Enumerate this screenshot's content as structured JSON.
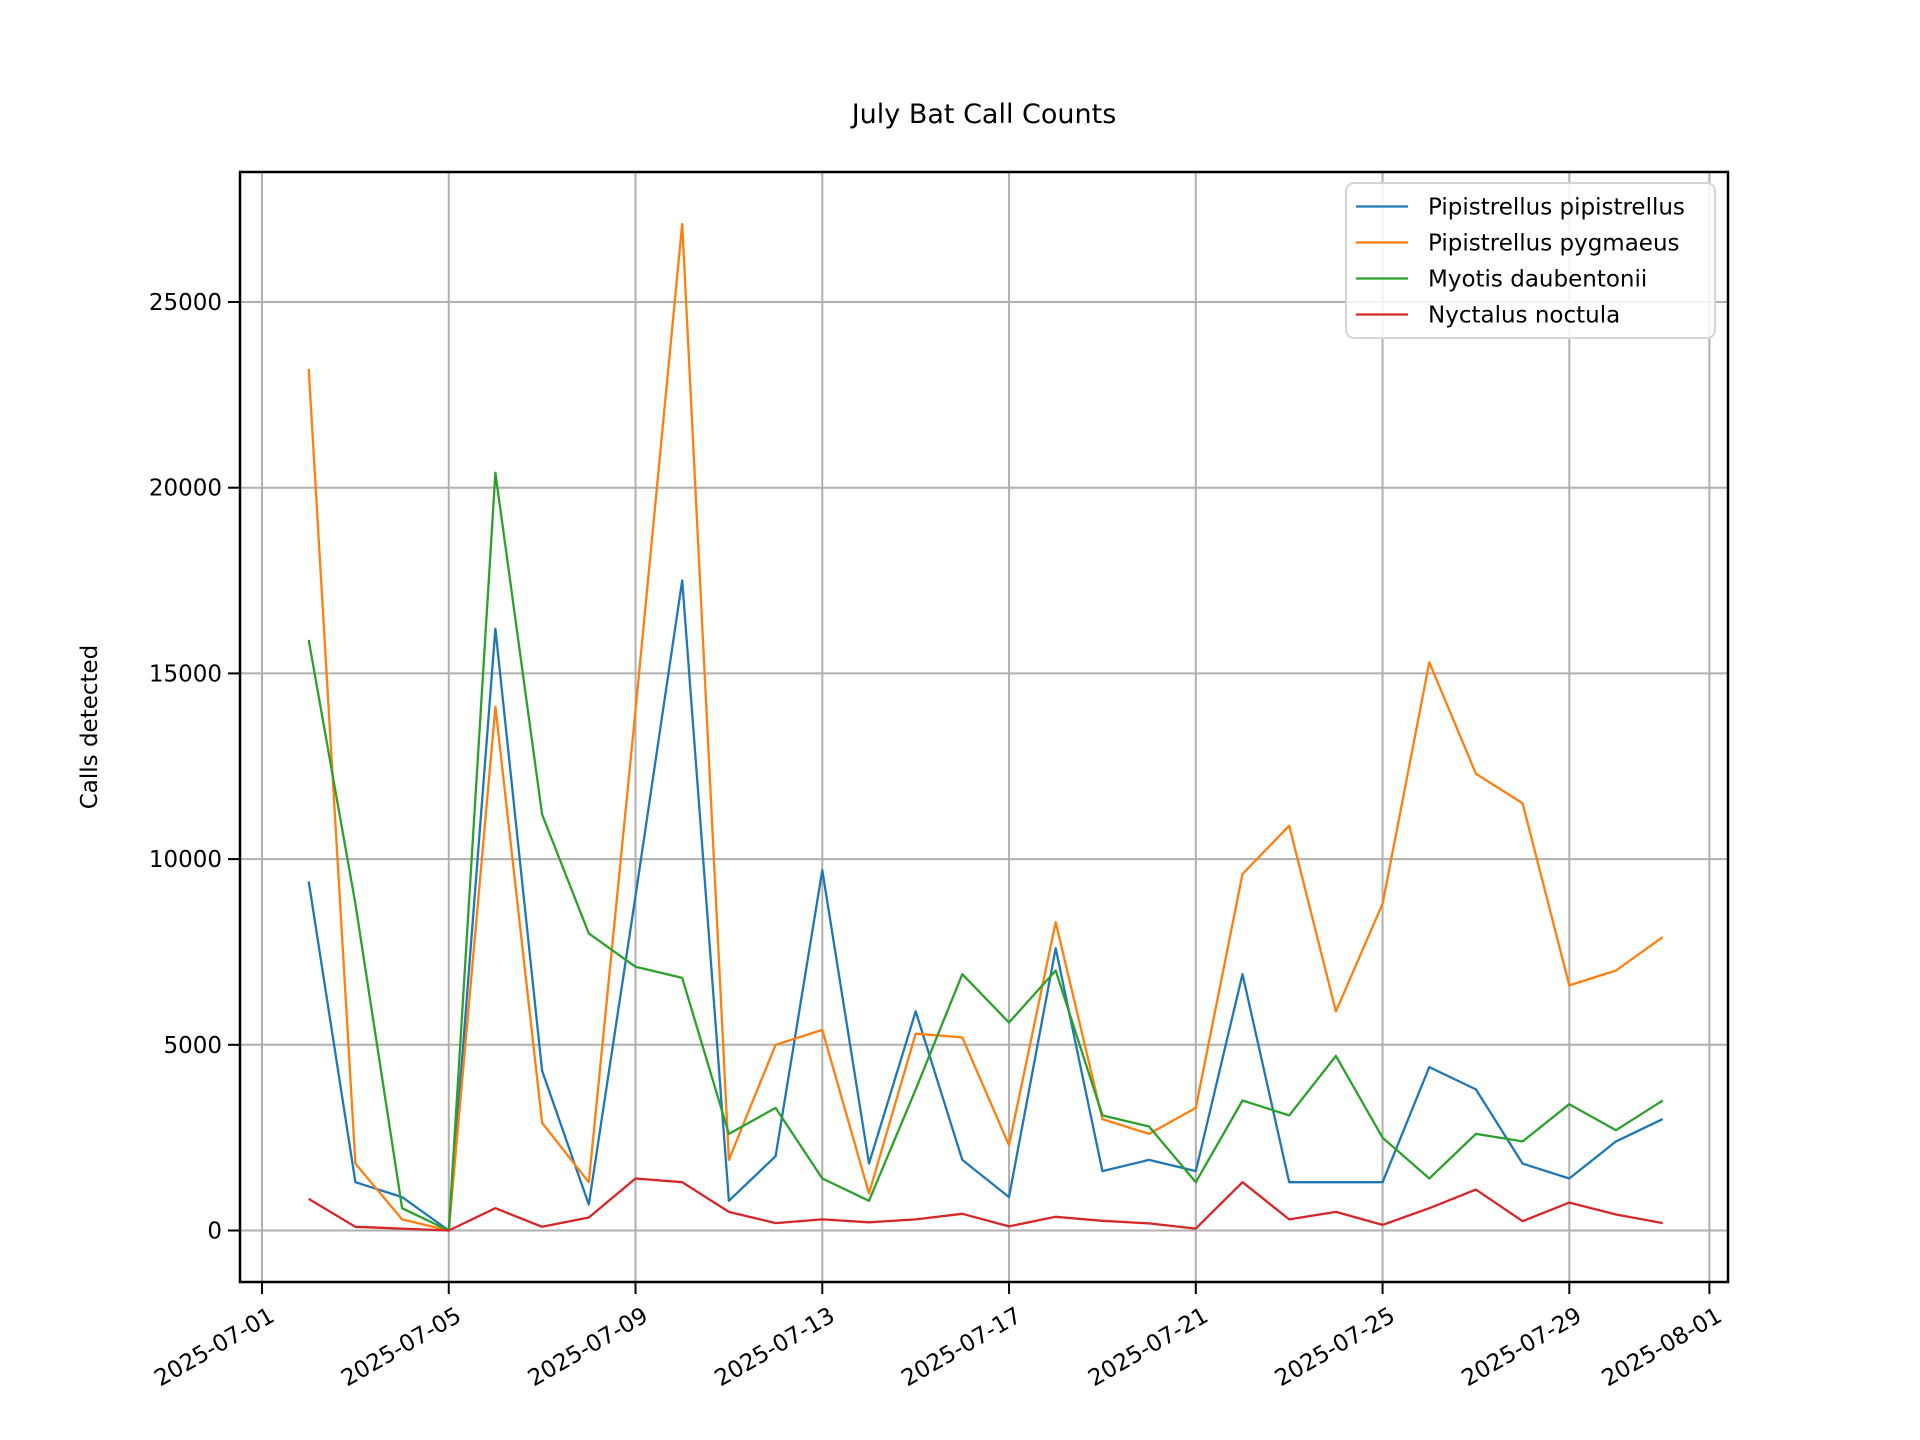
{
  "figure": {
    "background": "#ffffff",
    "grid_color": "#b0b0b0",
    "axis_color": "#000000",
    "legend_border_color": "#d5d5d5"
  },
  "chart_data": {
    "type": "line",
    "title": "July Bat Call Counts",
    "xlabel": "",
    "ylabel": "Calls detected",
    "grid": true,
    "legend_position": "upper right",
    "ylim": [
      -1360,
      28635
    ],
    "y_ticks": [
      0,
      5000,
      10000,
      15000,
      20000,
      25000
    ],
    "x_ticks": [
      {
        "label": "2025-07-01",
        "day_offset": 0
      },
      {
        "label": "2025-07-05",
        "day_offset": 4
      },
      {
        "label": "2025-07-09",
        "day_offset": 8
      },
      {
        "label": "2025-07-13",
        "day_offset": 12
      },
      {
        "label": "2025-07-17",
        "day_offset": 16
      },
      {
        "label": "2025-07-21",
        "day_offset": 20
      },
      {
        "label": "2025-07-25",
        "day_offset": 24
      },
      {
        "label": "2025-07-29",
        "day_offset": 28
      },
      {
        "label": "2025-08-01",
        "day_offset": 31
      }
    ],
    "x": [
      "2025-07-02",
      "2025-07-03",
      "2025-07-04",
      "2025-07-05",
      "2025-07-06",
      "2025-07-07",
      "2025-07-08",
      "2025-07-09",
      "2025-07-10",
      "2025-07-11",
      "2025-07-12",
      "2025-07-13",
      "2025-07-14",
      "2025-07-15",
      "2025-07-16",
      "2025-07-17",
      "2025-07-18",
      "2025-07-19",
      "2025-07-20",
      "2025-07-21",
      "2025-07-22",
      "2025-07-23",
      "2025-07-24",
      "2025-07-25",
      "2025-07-26",
      "2025-07-27",
      "2025-07-28",
      "2025-07-29",
      "2025-07-30",
      "2025-07-31"
    ],
    "series": [
      {
        "name": "Pipistrellus pipistrellus",
        "color": "#1f77b4",
        "values": [
          9400,
          1300,
          900,
          0,
          16200,
          4300,
          700,
          9000,
          17500,
          800,
          2000,
          9700,
          1800,
          5900,
          1900,
          900,
          7600,
          1600,
          1900,
          1600,
          6900,
          1300,
          1300,
          1300,
          4400,
          3800,
          1800,
          1400,
          2400,
          3000
        ]
      },
      {
        "name": "Pipistrellus pygmaeus",
        "color": "#ff7f0e",
        "values": [
          23200,
          1800,
          300,
          0,
          14100,
          2900,
          1300,
          14000,
          27100,
          1900,
          5000,
          5400,
          1000,
          5300,
          5200,
          2300,
          8300,
          3000,
          2600,
          3300,
          9600,
          10900,
          5900,
          8800,
          15300,
          12300,
          11500,
          6600,
          7000,
          7900
        ]
      },
      {
        "name": "Myotis daubentonii",
        "color": "#2ca02c",
        "values": [
          15900,
          8800,
          600,
          0,
          20400,
          11200,
          8000,
          7100,
          6800,
          2600,
          3300,
          1400,
          800,
          3800,
          6900,
          5600,
          7000,
          3100,
          2800,
          1300,
          3500,
          3100,
          4700,
          2500,
          1400,
          2600,
          2400,
          3400,
          2700,
          3500
        ]
      },
      {
        "name": "Nyctalus noctula",
        "color": "#d62728",
        "values": [
          850,
          100,
          50,
          0,
          600,
          100,
          350,
          1400,
          1300,
          500,
          200,
          300,
          220,
          300,
          450,
          110,
          370,
          260,
          190,
          50,
          1300,
          300,
          500,
          150,
          600,
          1100,
          250,
          750,
          430,
          200
        ]
      }
    ]
  }
}
